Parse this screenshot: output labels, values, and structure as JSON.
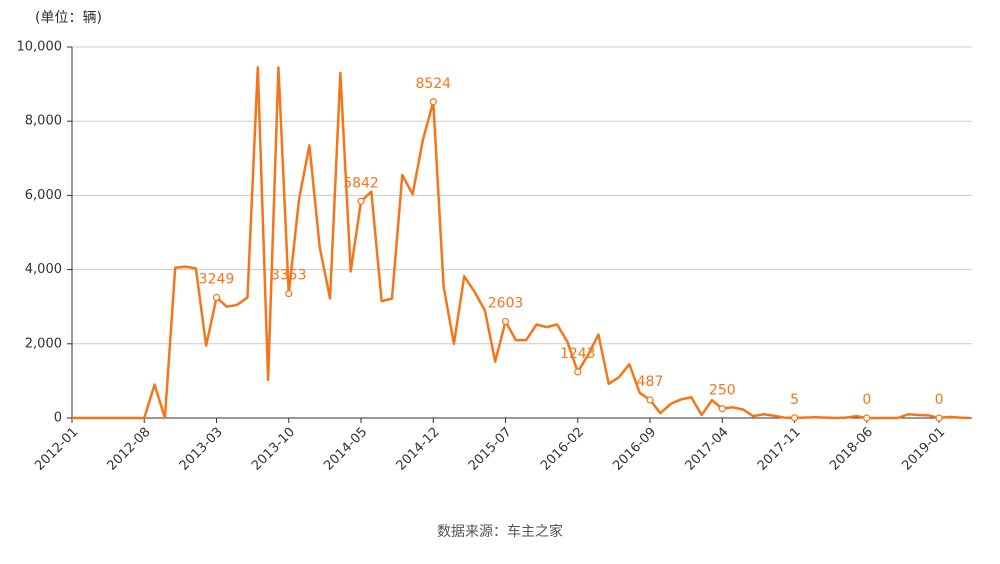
{
  "chart_data": {
    "type": "line",
    "y_unit_label": "(单位：辆)",
    "source": "数据来源：车主之家",
    "categories": [
      "2012-01",
      null,
      null,
      null,
      null,
      null,
      null,
      "2012-08",
      null,
      null,
      null,
      null,
      null,
      null,
      "2013-03",
      null,
      null,
      null,
      null,
      null,
      null,
      "2013-10",
      null,
      null,
      null,
      null,
      null,
      null,
      "2014-05",
      null,
      null,
      null,
      null,
      null,
      null,
      "2014-12",
      null,
      null,
      null,
      null,
      null,
      null,
      "2015-07",
      null,
      null,
      null,
      null,
      null,
      null,
      "2016-02",
      null,
      null,
      null,
      null,
      null,
      null,
      "2016-09",
      null,
      null,
      null,
      null,
      null,
      null,
      "2017-04",
      null,
      null,
      null,
      null,
      null,
      null,
      "2017-11",
      null,
      null,
      null,
      null,
      null,
      null,
      "2018-06",
      null,
      null,
      null,
      null,
      null,
      null,
      "2019-01",
      null,
      null,
      null
    ],
    "values": [
      0,
      0,
      0,
      0,
      0,
      0,
      0,
      0,
      900,
      0,
      4050,
      4080,
      4030,
      1950,
      3249,
      3000,
      3050,
      3250,
      9450,
      1030,
      9450,
      3353,
      5900,
      7350,
      4600,
      3220,
      9300,
      3950,
      5842,
      6100,
      3150,
      3220,
      6550,
      6030,
      7500,
      8524,
      3550,
      2000,
      3820,
      3400,
      2900,
      1520,
      2603,
      2100,
      2100,
      2520,
      2450,
      2520,
      2050,
      1243,
      1700,
      2250,
      920,
      1100,
      1450,
      680,
      487,
      130,
      380,
      500,
      560,
      80,
      480,
      250,
      290,
      230,
      50,
      100,
      60,
      10,
      5,
      10,
      20,
      10,
      0,
      10,
      50,
      0,
      0,
      0,
      0,
      100,
      80,
      70,
      0,
      30,
      10,
      0
    ],
    "value_labels": [
      null,
      null,
      null,
      null,
      null,
      null,
      null,
      null,
      null,
      null,
      null,
      null,
      null,
      null,
      "3249",
      null,
      null,
      null,
      null,
      null,
      null,
      "3353",
      null,
      null,
      null,
      null,
      null,
      null,
      "5842",
      null,
      null,
      null,
      null,
      null,
      null,
      "8524",
      null,
      null,
      null,
      null,
      null,
      null,
      "2603",
      null,
      null,
      null,
      null,
      null,
      null,
      "1243",
      null,
      null,
      null,
      null,
      null,
      null,
      "487",
      null,
      null,
      null,
      null,
      null,
      null,
      "250",
      null,
      null,
      null,
      null,
      null,
      null,
      "5",
      null,
      null,
      null,
      null,
      null,
      null,
      "0",
      null,
      null,
      null,
      null,
      null,
      null,
      "0",
      null,
      null,
      null
    ],
    "color": "#f5761a",
    "ylim": [
      0,
      10000
    ],
    "yticks": [
      0,
      {
        "value": 2000,
        "label": "2,000"
      },
      {
        "value": 4000,
        "label": "4,000"
      },
      {
        "value": 6000,
        "label": "6,000"
      },
      {
        "value": 8000,
        "label": "8,000"
      },
      {
        "value": 10000,
        "label": "10,000"
      }
    ],
    "grid": true
  }
}
